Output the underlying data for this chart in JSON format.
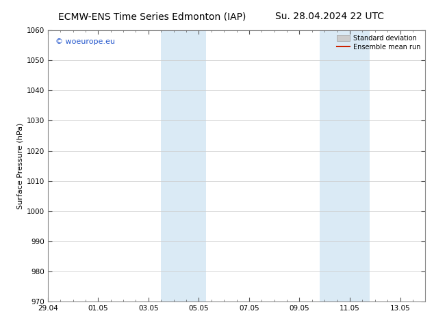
{
  "title_left": "ECMW-ENS Time Series Edmonton (IAP)",
  "title_right": "Su. 28.04.2024 22 UTC",
  "ylabel": "Surface Pressure (hPa)",
  "ylim": [
    970,
    1060
  ],
  "yticks": [
    970,
    980,
    990,
    1000,
    1010,
    1020,
    1030,
    1040,
    1050,
    1060
  ],
  "xtick_positions": [
    0,
    2,
    4,
    6,
    8,
    10,
    12,
    14
  ],
  "xtick_labels": [
    "29.04",
    "01.05",
    "03.05",
    "05.05",
    "07.05",
    "09.05",
    "11.05",
    "13.05"
  ],
  "xlim": [
    0,
    15
  ],
  "shade_bands": [
    {
      "x_start": 4.5,
      "x_end": 6.3
    },
    {
      "x_start": 10.8,
      "x_end": 12.8
    }
  ],
  "shade_color": "#daeaf5",
  "watermark_text": "© woeurope.eu",
  "watermark_color": "#2255cc",
  "legend_std_color": "#cccccc",
  "legend_mean_color": "#cc2200",
  "bg_color": "#ffffff",
  "spine_color": "#888888",
  "tick_color": "#000000",
  "title_fontsize": 10,
  "tick_fontsize": 7.5,
  "ylabel_fontsize": 8,
  "watermark_fontsize": 8,
  "legend_fontsize": 7
}
